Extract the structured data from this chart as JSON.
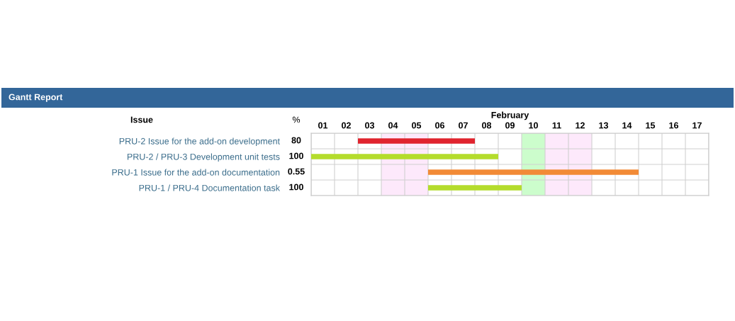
{
  "chart_data": {
    "type": "bar",
    "orientation": "horizontal",
    "title": "Gantt Report",
    "xlabel": "February",
    "categories": [
      "PRU-2 Issue for the add-on development",
      "PRU-2 / PRU-3 Development unit tests",
      "PRU-1 Issue for the add-on documentation",
      "PRU-1 / PRU-4 Documentation task"
    ],
    "base": [
      3,
      1,
      6,
      6
    ],
    "values": [
      5,
      8,
      9,
      4
    ],
    "colors": [
      "#e0242e",
      "#b4dc2c",
      "#f28a36",
      "#b4dc2c"
    ],
    "xlim": [
      1,
      18
    ],
    "xticks": [
      {
        "value": 1,
        "label": null
      },
      {
        "value": 1.5,
        "label": "01"
      },
      {
        "value": 2,
        "label": null
      },
      {
        "value": 2.5,
        "label": "02"
      },
      {
        "value": 3,
        "label": null
      },
      {
        "value": 3.5,
        "label": "03"
      },
      {
        "value": 4,
        "label": null
      },
      {
        "value": 4.5,
        "label": "04"
      },
      {
        "value": 5,
        "label": null
      },
      {
        "value": 5.5,
        "label": "05"
      },
      {
        "value": 6,
        "label": null
      },
      {
        "value": 6.5,
        "label": "06"
      },
      {
        "value": 7,
        "label": null
      },
      {
        "value": 7.5,
        "label": "07"
      },
      {
        "value": 8,
        "label": null
      },
      {
        "value": 8.5,
        "label": "08"
      },
      {
        "value": 9,
        "label": null
      },
      {
        "value": 9.5,
        "label": "09"
      },
      {
        "value": 10,
        "label": null
      },
      {
        "value": 10.5,
        "label": "10"
      },
      {
        "value": 11,
        "label": null
      },
      {
        "value": 11.5,
        "label": "11"
      },
      {
        "value": 12,
        "label": null
      },
      {
        "value": 12.5,
        "label": "12"
      },
      {
        "value": 13,
        "label": null
      },
      {
        "value": 13.5,
        "label": "13"
      },
      {
        "value": 14,
        "label": null
      },
      {
        "value": 14.5,
        "label": "14"
      },
      {
        "value": 15,
        "label": null
      },
      {
        "value": 15.5,
        "label": "15"
      },
      {
        "value": 16,
        "label": null
      },
      {
        "value": 16.5,
        "label": "16"
      },
      {
        "value": 17,
        "label": null
      },
      {
        "value": 17.5,
        "label": "17"
      },
      {
        "value": 18,
        "label": null
      }
    ],
    "bands": [
      {
        "axis": "x",
        "from": 4,
        "to": 6,
        "label": null,
        "color": "#fde9fb"
      },
      {
        "axis": "x",
        "from": 10,
        "to": 11,
        "label": null,
        "color": "#ccfdcc"
      },
      {
        "axis": "x",
        "from": 11,
        "to": 13,
        "label": null,
        "color": "#fde9fb"
      }
    ],
    "annotations": [
      "Issue",
      "%",
      "80",
      "100",
      "0.55",
      "100"
    ],
    "grid": true,
    "legend": false
  }
}
